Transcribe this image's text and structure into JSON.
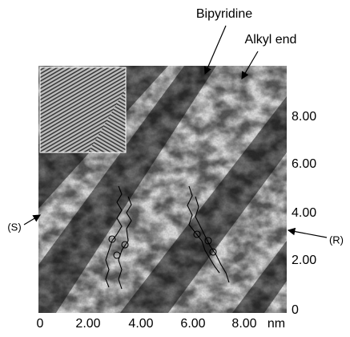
{
  "labels": {
    "bipyridine": "Bipyridine",
    "alkyl_end": "Alkyl end",
    "s": "(S)",
    "r": "(R)"
  },
  "x_axis": {
    "ticks": [
      "0",
      "2.00",
      "4.00",
      "6.00",
      "8.00"
    ],
    "unit": "nm"
  },
  "y_axis": {
    "ticks": [
      "8.00",
      "6.00",
      "4.00",
      "2.00",
      "0"
    ]
  }
}
